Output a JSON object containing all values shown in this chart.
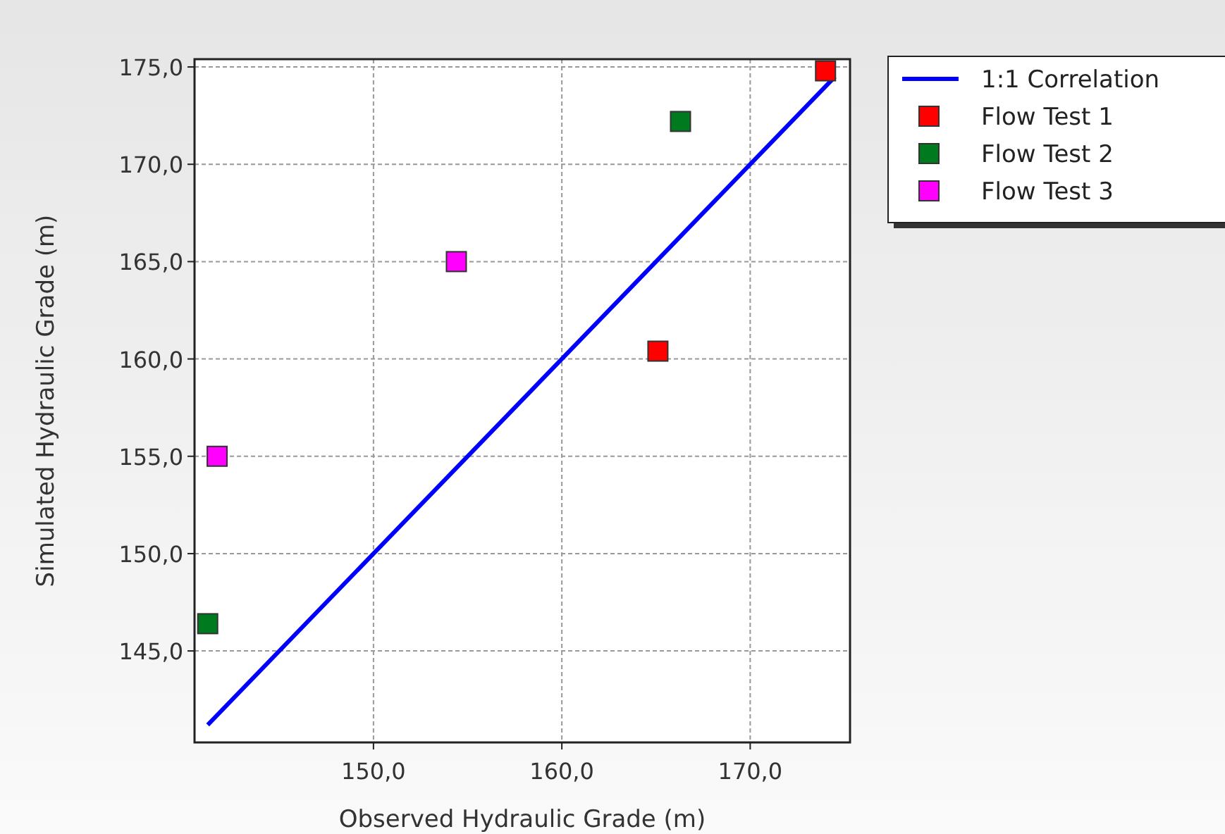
{
  "chart_data": {
    "type": "scatter",
    "xlabel": "Observed Hydraulic Grade (m)",
    "ylabel": "Simulated Hydraulic Grade (m)",
    "xlim": [
      140.5,
      175.3
    ],
    "ylim": [
      140.3,
      175.4
    ],
    "xticks": [
      {
        "value": 150,
        "label": "150,0"
      },
      {
        "value": 160,
        "label": "160,0"
      },
      {
        "value": 170,
        "label": "170,0"
      }
    ],
    "yticks": [
      {
        "value": 145,
        "label": "145,0"
      },
      {
        "value": 150,
        "label": "150,0"
      },
      {
        "value": 155,
        "label": "155,0"
      },
      {
        "value": 160,
        "label": "160,0"
      },
      {
        "value": 165,
        "label": "165,0"
      },
      {
        "value": 170,
        "label": "170,0"
      },
      {
        "value": 175,
        "label": "175,0"
      }
    ],
    "grid": true,
    "legend": "top right",
    "series": [
      {
        "name": "1:1 Correlation",
        "type": "line",
        "marker": "none",
        "color": "#0000ff",
        "x": [
          141.2,
          174.5
        ],
        "values": [
          141.2,
          174.5
        ]
      },
      {
        "name": "Flow Test 1",
        "marker": "square",
        "color": "#ff0000",
        "x": [
          174.0,
          165.1
        ],
        "values": [
          174.8,
          160.4
        ]
      },
      {
        "name": "Flow Test 2",
        "marker": "square",
        "color": "#007a1f",
        "x": [
          166.3,
          141.2
        ],
        "values": [
          172.2,
          146.4
        ]
      },
      {
        "name": "Flow Test 3",
        "marker": "square",
        "color": "#ff00ff",
        "x": [
          154.4,
          141.7
        ],
        "values": [
          165.0,
          155.0
        ]
      }
    ]
  }
}
